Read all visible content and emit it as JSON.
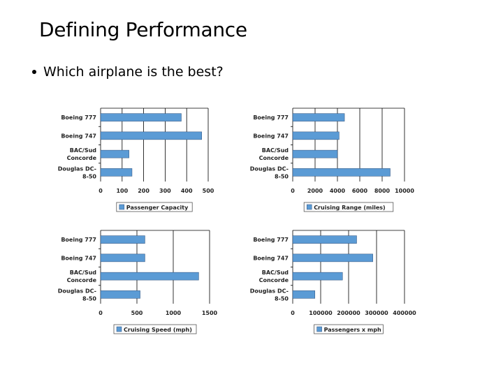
{
  "slide": {
    "title": "Defining Performance",
    "bullet": "Which airplane is the best?"
  },
  "colors": {
    "bar": "#5b9bd5",
    "bar_edge": "#2e4f7a",
    "grid": "#000000"
  },
  "chart_data": [
    {
      "type": "bar",
      "orientation": "horizontal",
      "categories": [
        "Boeing 777",
        "Boeing 747",
        "BAC/Sud Concorde",
        "Douglas DC-8-50"
      ],
      "category_lines": [
        [
          "Boeing 777"
        ],
        [
          "Boeing 747"
        ],
        [
          "BAC/Sud",
          "Concorde"
        ],
        [
          "Douglas DC-",
          "8-50"
        ]
      ],
      "series": [
        {
          "name": "Passenger Capacity",
          "values": [
            375,
            470,
            132,
            146
          ]
        }
      ],
      "xlim": [
        0,
        500
      ],
      "xticks": [
        "0",
        "100",
        "200",
        "300",
        "400",
        "500"
      ],
      "grid": true,
      "legend": "bottom"
    },
    {
      "type": "bar",
      "orientation": "horizontal",
      "categories": [
        "Boeing 777",
        "Boeing 747",
        "BAC/Sud Concorde",
        "Douglas DC-8-50"
      ],
      "category_lines": [
        [
          "Boeing 777"
        ],
        [
          "Boeing 747"
        ],
        [
          "BAC/Sud",
          "Concorde"
        ],
        [
          "Douglas DC-",
          "8-50"
        ]
      ],
      "series": [
        {
          "name": "Cruising Range (miles)",
          "values": [
            4630,
            4150,
            4000,
            8720
          ]
        }
      ],
      "xlim": [
        0,
        10000
      ],
      "xticks": [
        "0",
        "2000",
        "4000",
        "6000",
        "8000",
        "10000"
      ],
      "grid": true,
      "legend": "bottom"
    },
    {
      "type": "bar",
      "orientation": "horizontal",
      "categories": [
        "Boeing 777",
        "Boeing 747",
        "BAC/Sud Concorde",
        "Douglas DC-8-50"
      ],
      "category_lines": [
        [
          "Boeing 777"
        ],
        [
          "Boeing 747"
        ],
        [
          "BAC/Sud",
          "Concorde"
        ],
        [
          "Douglas DC-",
          "8-50"
        ]
      ],
      "series": [
        {
          "name": "Cruising Speed (mph)",
          "values": [
            610,
            610,
            1350,
            544
          ]
        }
      ],
      "xlim": [
        0,
        1500
      ],
      "xticks": [
        "0",
        "500",
        "1000",
        "1500"
      ],
      "grid": true,
      "legend": "bottom"
    },
    {
      "type": "bar",
      "orientation": "horizontal",
      "categories": [
        "Boeing 777",
        "Boeing 747",
        "BAC/Sud Concorde",
        "Douglas DC-8-50"
      ],
      "category_lines": [
        [
          "Boeing 777"
        ],
        [
          "Boeing 747"
        ],
        [
          "BAC/Sud",
          "Concorde"
        ],
        [
          "Douglas DC-",
          "8-50"
        ]
      ],
      "series": [
        {
          "name": "Passengers x mph",
          "values": [
            228750,
            286700,
            178200,
            79424
          ]
        }
      ],
      "xlim": [
        0,
        400000
      ],
      "xticks": [
        "0",
        "100000",
        "200000",
        "300000",
        "400000"
      ],
      "grid": true,
      "legend": "bottom"
    }
  ]
}
